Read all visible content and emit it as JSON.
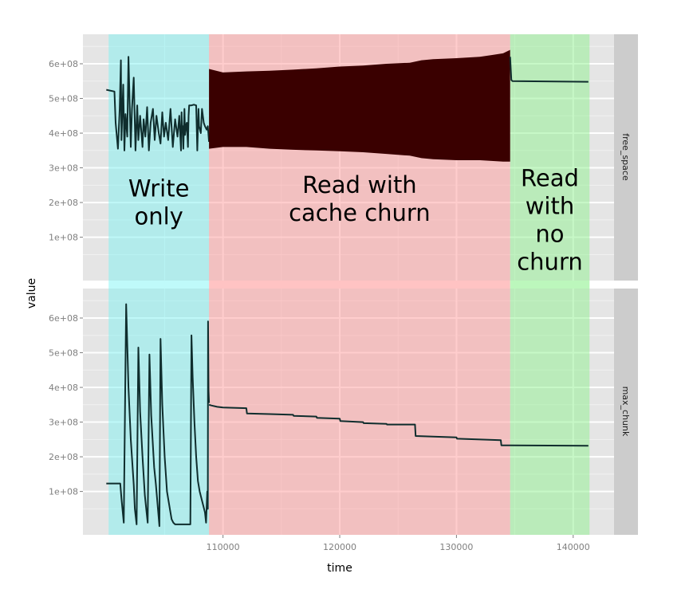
{
  "chart_data": {
    "type": "line",
    "facet_by": "variable",
    "xlabel": "time",
    "ylabel": "value",
    "xlim": [
      98000,
      143500
    ],
    "ylim": [
      -25000000,
      685000000
    ],
    "x_ticks": [
      110000,
      120000,
      130000,
      140000
    ],
    "x_tick_labels": [
      "110000",
      "120000",
      "130000",
      "140000"
    ],
    "y_ticks": [
      100000000,
      200000000,
      300000000,
      400000000,
      500000000,
      600000000
    ],
    "y_tick_labels": [
      "1e+08",
      "2e+08",
      "3e+08",
      "4e+08",
      "5e+08",
      "6e+08"
    ],
    "grid": true,
    "colors": {
      "panel_bg": "#e5e5e5",
      "grid_major": "#ffffff",
      "grid_minor": "#f2f2f2",
      "strip_bg": "#cccccc",
      "tick_label": "#7f7f7f",
      "line": "#0f2d2d",
      "band_write": "#7ff2f2",
      "band_read_churn": "#ff9b9b",
      "band_read_nochurn": "#8ff28f",
      "band_overlap": "#bffafa"
    },
    "phases": [
      {
        "label": "Write\nonly",
        "x_start": 100200,
        "x_end": 108800,
        "color": "#7ff2f2",
        "label_y": 200000000
      },
      {
        "label": "Read with\ncache churn",
        "x_start": 108800,
        "x_end": 134600,
        "color": "#ff9b9b",
        "label_y": 210000000
      },
      {
        "label": "Read\nwith\nno\nchurn",
        "x_start": 134600,
        "x_end": 141400,
        "color": "#8ff28f",
        "label_y": 150000000
      }
    ],
    "panels": [
      {
        "strip": "free_space",
        "series": [
          {
            "kind": "line",
            "x": [
              100000,
              100700,
              100800,
              101000,
              101150,
              101250,
              101300,
              101450,
              101550,
              101650,
              101800,
              101900,
              102100,
              102200,
              102350,
              102500,
              102650,
              102750,
              102900,
              103100,
              103200,
              103350,
              103500,
              103650,
              103800,
              104000,
              104150,
              104300,
              104500,
              104650,
              104800,
              104950,
              105100,
              105300,
              105500,
              105700,
              105900,
              106100,
              106250,
              106400,
              106450,
              106500,
              106550,
              106600,
              106700,
              106750,
              106850,
              106900,
              107000,
              107050,
              107100,
              107150,
              107300,
              107500,
              107700,
              107800,
              107900,
              107950,
              108100,
              108200,
              108350,
              108450,
              108600,
              108700,
              108800
            ],
            "y": [
              525000000,
              520000000,
              430000000,
              355000000,
              470000000,
              610000000,
              380000000,
              540000000,
              350000000,
              455000000,
              390000000,
              620000000,
              360000000,
              470000000,
              560000000,
              350000000,
              480000000,
              380000000,
              450000000,
              360000000,
              440000000,
              390000000,
              475000000,
              350000000,
              430000000,
              470000000,
              380000000,
              450000000,
              400000000,
              370000000,
              460000000,
              390000000,
              430000000,
              380000000,
              470000000,
              360000000,
              440000000,
              390000000,
              450000000,
              350000000,
              460000000,
              405000000,
              420000000,
              355000000,
              470000000,
              395000000,
              425000000,
              430000000,
              360000000,
              450000000,
              480000000,
              480000000,
              480000000,
              482000000,
              480000000,
              350000000,
              470000000,
              420000000,
              400000000,
              470000000,
              430000000,
              420000000,
              410000000,
              420000000,
              375000000
            ]
          },
          {
            "kind": "band",
            "x": [
              108800,
              110000,
              112000,
              114000,
              116000,
              118000,
              120000,
              122000,
              124000,
              126000,
              127000,
              128000,
              130000,
              132000,
              133000,
              134000,
              134600
            ],
            "y_min": [
              355000000,
              360000000,
              360000000,
              355000000,
              352000000,
              350000000,
              348000000,
              345000000,
              340000000,
              335000000,
              328000000,
              325000000,
              322000000,
              322000000,
              320000000,
              318000000,
              318000000
            ],
            "y_max": [
              585000000,
              575000000,
              578000000,
              580000000,
              583000000,
              587000000,
              592000000,
              595000000,
              600000000,
              603000000,
              610000000,
              613000000,
              616000000,
              620000000,
              625000000,
              630000000,
              640000000
            ],
            "fill": "#3a0000"
          },
          {
            "kind": "line",
            "x": [
              134600,
              134700,
              134800,
              141300
            ],
            "y": [
              620000000,
              553000000,
              550000000,
              548000000
            ]
          }
        ]
      },
      {
        "strip": "max_chunk",
        "series": [
          {
            "kind": "line",
            "x": [
              100000,
              101200,
              101300,
              101500,
              101700,
              101900,
              102100,
              102350,
              102450,
              102600,
              102750,
              102900,
              103100,
              103300,
              103450,
              103550,
              103700,
              103850,
              104100,
              104250,
              104550,
              104650,
              104800,
              105000,
              105200,
              105450,
              105600,
              105750,
              105900,
              106000,
              107200,
              107300,
              107400,
              107550,
              107700,
              107850,
              108000,
              108300,
              108450,
              108550,
              108650,
              108700,
              108720,
              108760,
              108800
            ],
            "y": [
              123000000,
              123000000,
              80000000,
              10000000,
              640000000,
              400000000,
              250000000,
              120000000,
              50000000,
              5000000,
              515000000,
              330000000,
              200000000,
              90000000,
              40000000,
              10000000,
              495000000,
              320000000,
              170000000,
              120000000,
              0,
              540000000,
              350000000,
              200000000,
              100000000,
              50000000,
              20000000,
              10000000,
              5000000,
              5000000,
              5000000,
              550000000,
              430000000,
              300000000,
              200000000,
              130000000,
              100000000,
              60000000,
              40000000,
              10000000,
              100000000,
              50000000,
              590000000,
              390000000,
              355000000
            ]
          },
          {
            "kind": "line",
            "x": [
              108800,
              109000,
              109500,
              110000,
              112000,
              112050,
              114000,
              116000,
              116050,
              118000,
              118050,
              120000,
              120050,
              122000,
              122050,
              124000,
              124050,
              126450,
              126500,
              130000,
              130050,
              133800,
              133850,
              134600,
              141300
            ],
            "y": [
              350000000,
              348000000,
              344000000,
              342000000,
              340000000,
              325000000,
              323000000,
              321000000,
              318000000,
              316000000,
              312000000,
              310000000,
              303000000,
              300000000,
              297000000,
              295000000,
              293000000,
              293000000,
              260000000,
              256000000,
              252000000,
              248000000,
              233000000,
              233000000,
              232000000
            ]
          }
        ]
      }
    ]
  }
}
